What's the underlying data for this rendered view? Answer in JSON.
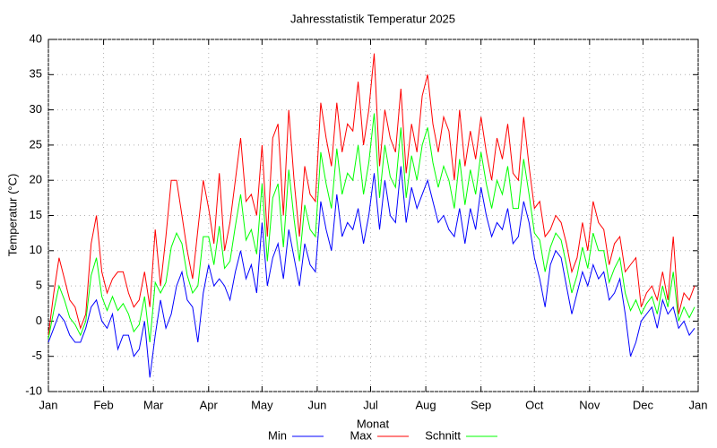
{
  "chart_data": {
    "type": "line",
    "title": "Jahresstatistik Temperatur 2025",
    "xlabel": "Monat",
    "ylabel": "Temperatur (°C)",
    "x": [
      0,
      3,
      6,
      9,
      12,
      15,
      18,
      21,
      24,
      27,
      30,
      33,
      36,
      39,
      42,
      45,
      48,
      51,
      54,
      57,
      60,
      63,
      66,
      69,
      72,
      75,
      78,
      81,
      84,
      87,
      90,
      93,
      96,
      99,
      102,
      105,
      108,
      111,
      114,
      117,
      120,
      123,
      126,
      129,
      132,
      135,
      138,
      141,
      144,
      147,
      150,
      153,
      156,
      159,
      162,
      165,
      168,
      171,
      174,
      177,
      180,
      183,
      186,
      189,
      192,
      195,
      198,
      201,
      204,
      207,
      210,
      213,
      216,
      219,
      222,
      225,
      228,
      231,
      234,
      237,
      240,
      243,
      246,
      249,
      252,
      255,
      258,
      261,
      264,
      267,
      270,
      273,
      276,
      279,
      282,
      285,
      288,
      291,
      294,
      297,
      300,
      303,
      306,
      309,
      312,
      315,
      318,
      321,
      324,
      327,
      330,
      333,
      336,
      339,
      342,
      345,
      348,
      351,
      354,
      357,
      360,
      363
    ],
    "series": [
      {
        "name": "Min",
        "color": "#0000ff",
        "values": [
          -3,
          -1,
          1,
          0,
          -2,
          -3,
          -3,
          -1,
          2,
          3,
          0,
          -1,
          1,
          -4,
          -2,
          -2,
          -5,
          -4,
          0,
          -8,
          -2,
          3,
          -1,
          1,
          5,
          7,
          3,
          2,
          -3,
          4,
          8,
          5,
          6,
          5,
          3,
          7,
          10,
          6,
          8,
          4,
          14,
          5,
          9,
          11,
          6,
          13,
          9,
          5,
          11,
          8,
          7,
          17,
          13,
          10,
          18,
          12,
          14,
          13,
          16,
          11,
          15,
          21,
          13,
          20,
          15,
          14,
          22,
          14,
          19,
          16,
          18,
          20,
          17,
          14,
          15,
          13,
          12,
          16,
          11,
          16,
          13,
          19,
          15,
          12,
          14,
          13,
          16,
          11,
          12,
          17,
          14,
          9,
          6,
          2,
          8,
          10,
          9,
          5,
          1,
          4,
          7,
          5,
          8,
          6,
          7,
          3,
          4,
          6,
          1,
          -5,
          -3,
          0,
          1,
          2,
          -1,
          3,
          1,
          2,
          -1,
          0,
          -2,
          -1
        ]
      },
      {
        "name": "Max",
        "color": "#ff0000",
        "values": [
          -2,
          4,
          9,
          6,
          3,
          2,
          -1,
          1,
          11,
          15,
          7,
          4,
          6,
          7,
          7,
          4,
          2,
          3,
          7,
          2,
          13,
          5,
          12,
          20,
          20,
          15,
          10,
          6,
          13,
          20,
          16,
          11,
          21,
          10,
          14,
          20,
          26,
          17,
          18,
          15,
          25,
          12,
          26,
          28,
          15,
          30,
          20,
          12,
          22,
          18,
          17,
          31,
          26,
          22,
          31,
          24,
          28,
          27,
          34,
          25,
          30,
          38,
          22,
          30,
          26,
          24,
          33,
          21,
          28,
          24,
          32,
          35,
          28,
          24,
          29,
          27,
          20,
          30,
          22,
          27,
          23,
          29,
          24,
          20,
          26,
          23,
          28,
          21,
          20,
          29,
          22,
          16,
          17,
          12,
          13,
          15,
          14,
          11,
          7,
          9,
          14,
          10,
          17,
          14,
          13,
          8,
          11,
          12,
          7,
          8,
          9,
          2,
          4,
          5,
          3,
          7,
          3,
          12,
          1,
          4,
          3,
          5
        ]
      },
      {
        "name": "Schnitt",
        "color": "#00ff00",
        "values": [
          -2.5,
          1.5,
          5,
          3,
          0.5,
          -0.5,
          -2,
          0,
          6.5,
          9,
          3.5,
          1.5,
          3.5,
          1.5,
          2.5,
          1,
          -1.5,
          -0.5,
          3.5,
          -3,
          5.5,
          4,
          5.5,
          10.5,
          12.5,
          11,
          6.5,
          4,
          5,
          12,
          12,
          8,
          13.5,
          7.5,
          8.5,
          13.5,
          18,
          11.5,
          13,
          9.5,
          19.5,
          8.5,
          17.5,
          19.5,
          10.5,
          21.5,
          14.5,
          8.5,
          16.5,
          13,
          12,
          24,
          19.5,
          16,
          24.5,
          18,
          21,
          20,
          25,
          18,
          22.5,
          29.5,
          17.5,
          25,
          20.5,
          19,
          27.5,
          17.5,
          23.5,
          20,
          25,
          27.5,
          22.5,
          19,
          22,
          20,
          16,
          23,
          16.5,
          21.5,
          18,
          24,
          19.5,
          16,
          20,
          18,
          22,
          16,
          16,
          23,
          18,
          12.5,
          11.5,
          7,
          10.5,
          12.5,
          11.5,
          8,
          4,
          6.5,
          10.5,
          7.5,
          12.5,
          10,
          10,
          5.5,
          7.5,
          9,
          4,
          1.5,
          3,
          1,
          2.5,
          3.5,
          1,
          5,
          2,
          7,
          0,
          2,
          0.5,
          2
        ]
      }
    ],
    "xlim": [
      0,
      365
    ],
    "xticks": [
      {
        "value": 0,
        "label": "Jan"
      },
      {
        "value": 31,
        "label": "Feb"
      },
      {
        "value": 59,
        "label": "Mar"
      },
      {
        "value": 90,
        "label": "Apr"
      },
      {
        "value": 120,
        "label": "May"
      },
      {
        "value": 151,
        "label": "Jun"
      },
      {
        "value": 181,
        "label": "Jul"
      },
      {
        "value": 212,
        "label": "Aug"
      },
      {
        "value": 243,
        "label": "Sep"
      },
      {
        "value": 273,
        "label": "Oct"
      },
      {
        "value": 304,
        "label": "Nov"
      },
      {
        "value": 334,
        "label": "Dec"
      },
      {
        "value": 365,
        "label": "Jan"
      }
    ],
    "ylim": [
      -10,
      40
    ],
    "yticks": [
      -10,
      -5,
      0,
      5,
      10,
      15,
      20,
      25,
      30,
      35,
      40
    ],
    "grid": true
  }
}
